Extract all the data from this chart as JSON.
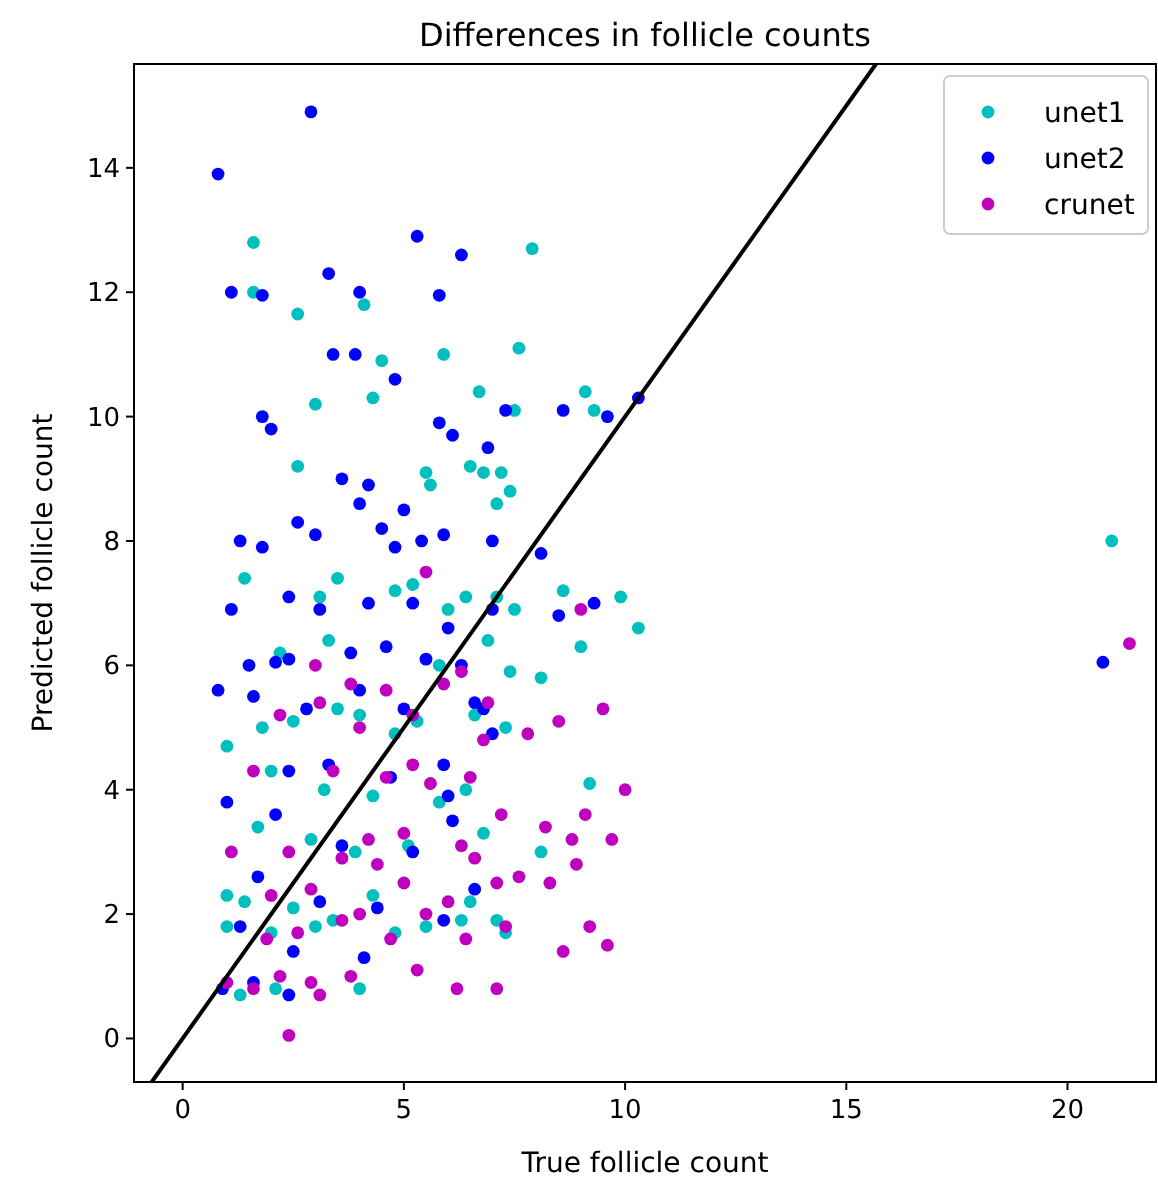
{
  "chart_data": {
    "type": "scatter",
    "title": "Differences in follicle counts",
    "xlabel": "True follicle count",
    "ylabel": "Predicted follicle count",
    "xlim": [
      -1.1,
      22.0
    ],
    "ylim": [
      -0.7,
      15.67
    ],
    "xticks": [
      0,
      5,
      10,
      15,
      20
    ],
    "yticks": [
      0,
      2,
      4,
      6,
      8,
      10,
      12,
      14
    ],
    "grid": false,
    "legend": "top right",
    "series": [
      {
        "name": "unet1",
        "color": "#00bfbf",
        "marker": "circle",
        "x": [
          1.6,
          1.6,
          2.6,
          4.1,
          7.9,
          4.3,
          4.5,
          5.9,
          7.6,
          9.1,
          9.3,
          7.5,
          6.7,
          3.0,
          2.6,
          5.5,
          5.6,
          6.5,
          6.8,
          7.2,
          7.4,
          7.1,
          1.4,
          3.5,
          3.1,
          5.2,
          4.8,
          6.4,
          6.0,
          7.1,
          8.6,
          9.9,
          10.3,
          9.0,
          7.5,
          2.2,
          3.3,
          5.8,
          6.9,
          7.4,
          8.1,
          1.0,
          1.8,
          2.5,
          3.5,
          4.0,
          4.8,
          5.3,
          6.6,
          7.3,
          2.0,
          3.2,
          4.3,
          5.8,
          6.4,
          9.2,
          1.7,
          2.9,
          3.9,
          5.1,
          6.8,
          8.1,
          1.0,
          1.4,
          2.5,
          3.4,
          4.3,
          6.5,
          7.1,
          1.0,
          2.0,
          3.0,
          4.8,
          5.5,
          6.3,
          7.3,
          1.3,
          2.1,
          21.0,
          4.0
        ],
        "values": [
          12.8,
          12.0,
          11.65,
          11.8,
          12.7,
          10.3,
          10.9,
          11.0,
          11.1,
          10.4,
          10.1,
          10.1,
          10.4,
          10.2,
          9.2,
          9.1,
          8.9,
          9.2,
          9.1,
          9.1,
          8.8,
          8.6,
          7.4,
          7.4,
          7.1,
          7.3,
          7.2,
          7.1,
          6.9,
          7.1,
          7.2,
          7.1,
          6.6,
          6.3,
          6.9,
          6.2,
          6.4,
          6.0,
          6.4,
          5.9,
          5.8,
          4.7,
          5.0,
          5.1,
          5.3,
          5.2,
          4.9,
          5.1,
          5.2,
          5.0,
          4.3,
          4.0,
          3.9,
          3.8,
          4.0,
          4.1,
          3.4,
          3.2,
          3.0,
          3.1,
          3.3,
          3.0,
          2.3,
          2.2,
          2.1,
          1.9,
          2.3,
          2.2,
          1.9,
          1.8,
          1.7,
          1.8,
          1.7,
          1.8,
          1.9,
          1.7,
          0.7,
          0.8,
          8.0,
          0.8
        ]
      },
      {
        "name": "unet2",
        "color": "#0000ff",
        "marker": "circle",
        "x": [
          0.8,
          2.9,
          1.1,
          1.8,
          4.0,
          5.3,
          5.8,
          6.3,
          3.3,
          3.4,
          3.9,
          4.8,
          7.3,
          8.6,
          9.6,
          10.3,
          1.8,
          2.0,
          5.8,
          6.1,
          6.9,
          3.6,
          4.2,
          4.0,
          5.0,
          1.3,
          1.8,
          2.6,
          3.0,
          4.5,
          4.8,
          5.4,
          5.9,
          7.0,
          8.1,
          1.1,
          2.4,
          3.1,
          4.2,
          5.2,
          6.0,
          7.0,
          8.5,
          9.3,
          1.5,
          2.1,
          2.4,
          3.8,
          4.6,
          5.5,
          6.3,
          0.8,
          1.6,
          2.8,
          4.0,
          5.0,
          6.6,
          7.0,
          2.4,
          3.3,
          4.7,
          5.9,
          6.0,
          1.0,
          2.1,
          3.6,
          5.2,
          6.1,
          1.7,
          3.1,
          4.4,
          5.9,
          6.6,
          1.3,
          2.5,
          4.1,
          0.9,
          1.6,
          2.4,
          20.8,
          6.8
        ],
        "values": [
          13.9,
          14.9,
          12.0,
          11.95,
          12.0,
          12.9,
          11.95,
          12.6,
          12.3,
          11.0,
          11.0,
          10.6,
          10.1,
          10.1,
          10.0,
          10.3,
          10.0,
          9.8,
          9.9,
          9.7,
          9.5,
          9.0,
          8.9,
          8.6,
          8.5,
          8.0,
          7.9,
          8.3,
          8.1,
          8.2,
          7.9,
          8.0,
          8.1,
          8.0,
          7.8,
          6.9,
          7.1,
          6.9,
          7.0,
          7.0,
          6.6,
          6.9,
          6.8,
          7.0,
          6.0,
          6.05,
          6.1,
          6.2,
          6.3,
          6.1,
          6.0,
          5.6,
          5.5,
          5.3,
          5.6,
          5.3,
          5.4,
          4.9,
          4.3,
          4.4,
          4.2,
          4.4,
          3.9,
          3.8,
          3.6,
          3.1,
          3.0,
          3.5,
          2.6,
          2.2,
          2.1,
          1.9,
          2.4,
          1.8,
          1.4,
          1.3,
          0.8,
          0.9,
          0.7,
          6.05,
          5.3
        ]
      },
      {
        "name": "crunet",
        "color": "#bf00bf",
        "marker": "circle",
        "x": [
          9.0,
          21.4,
          5.5,
          3.0,
          3.8,
          4.6,
          5.9,
          6.3,
          6.9,
          2.2,
          3.1,
          4.0,
          5.2,
          6.8,
          7.8,
          8.5,
          9.5,
          1.6,
          3.4,
          4.6,
          5.2,
          5.6,
          6.5,
          9.1,
          9.7,
          10.0,
          1.1,
          2.4,
          3.6,
          4.2,
          5.0,
          6.3,
          7.2,
          8.2,
          8.8,
          2.0,
          2.9,
          4.0,
          5.0,
          6.0,
          7.1,
          7.6,
          8.3,
          9.2,
          9.6,
          1.9,
          2.6,
          3.6,
          4.7,
          5.5,
          6.4,
          7.3,
          8.6,
          8.9,
          1.0,
          1.6,
          2.2,
          2.9,
          3.8,
          5.3,
          6.2,
          7.1,
          2.4,
          3.1,
          4.4,
          6.6
        ],
        "values": [
          6.9,
          6.35,
          7.5,
          6.0,
          5.7,
          5.6,
          5.7,
          5.9,
          5.4,
          5.2,
          5.4,
          5.0,
          5.2,
          4.8,
          4.9,
          5.1,
          5.3,
          4.3,
          4.3,
          4.2,
          4.4,
          4.1,
          4.2,
          3.6,
          3.2,
          4.0,
          3.0,
          3.0,
          2.9,
          3.2,
          3.3,
          3.1,
          3.6,
          3.4,
          3.2,
          2.3,
          2.4,
          2.0,
          2.5,
          2.2,
          2.5,
          2.6,
          2.5,
          1.8,
          1.5,
          1.6,
          1.7,
          1.9,
          1.6,
          2.0,
          1.6,
          1.8,
          1.4,
          2.8,
          0.9,
          0.8,
          1.0,
          0.9,
          1.0,
          1.1,
          0.8,
          0.8,
          0.05,
          0.7,
          2.8,
          2.9
        ]
      },
      {
        "type": "line",
        "color": "#000000",
        "marker": "none",
        "x": [
          -0.7,
          15.67
        ],
        "values": [
          -0.7,
          15.67
        ]
      }
    ]
  }
}
